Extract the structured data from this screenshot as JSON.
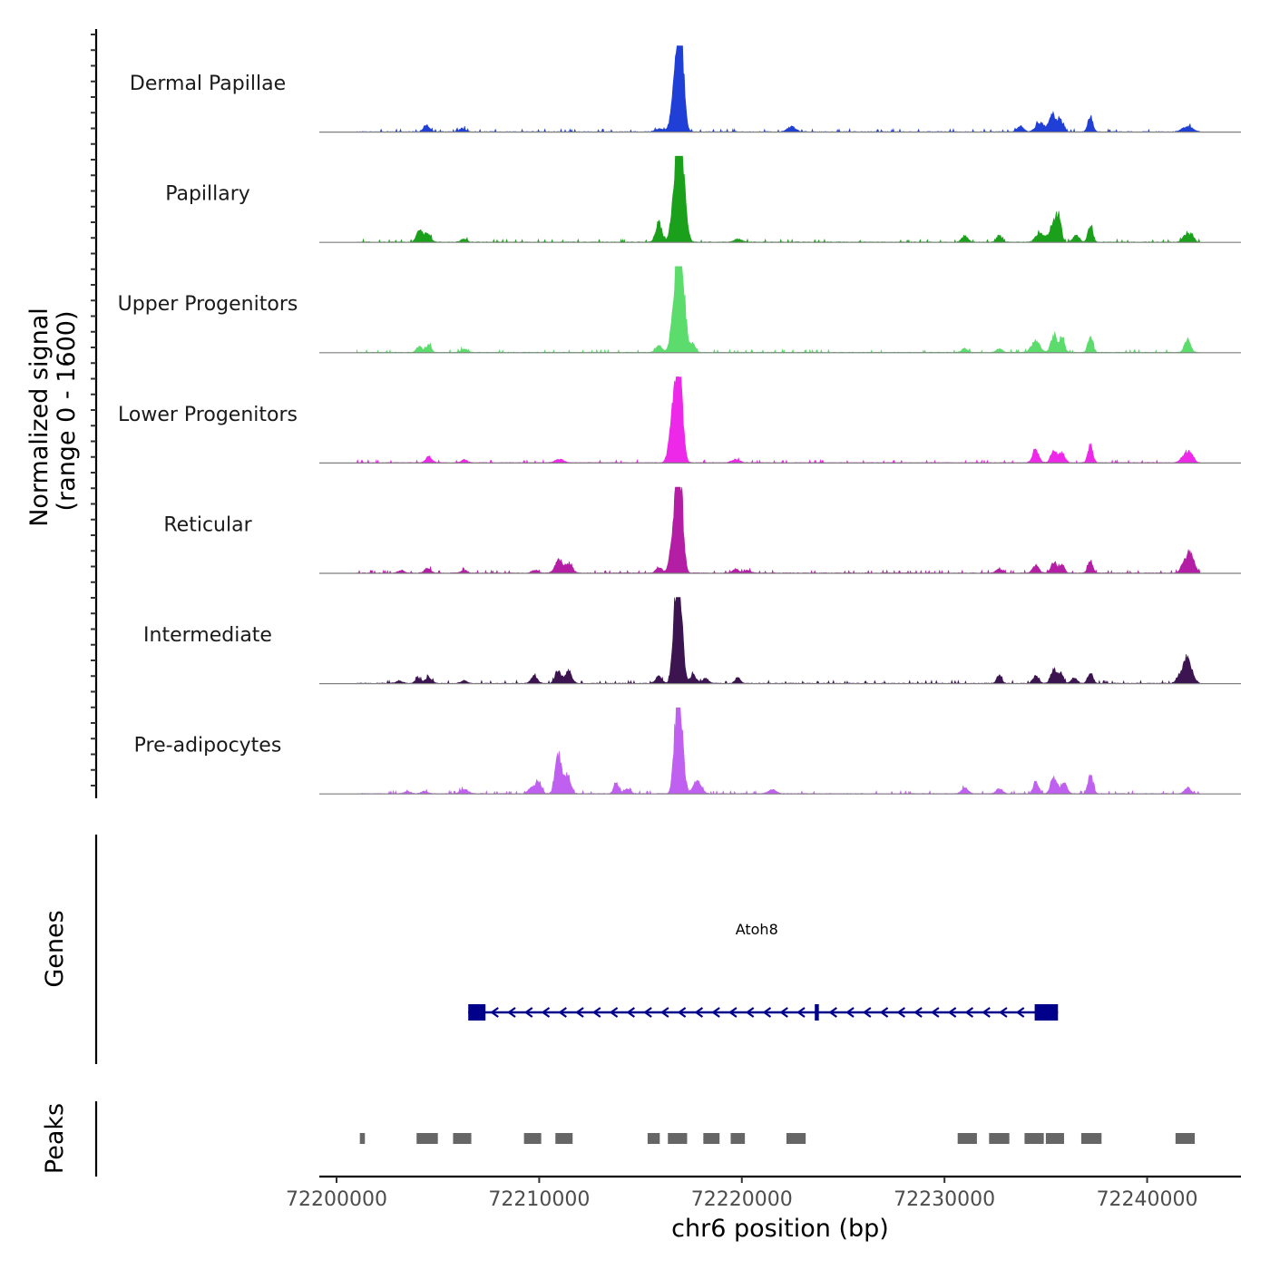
{
  "chart_data": {
    "type": "area",
    "title": "",
    "ylabel": "Normalized signal (range 0 - 1600)",
    "ylabel_lines": [
      "Normalized signal",
      "(range 0 - 1600)"
    ],
    "ylim": [
      0,
      1600
    ],
    "xlabel": "chr6 position (bp)",
    "xlim": [
      72199150,
      72244630
    ],
    "xticks": [
      72200000,
      72210000,
      72220000,
      72230000,
      72240000
    ],
    "xtick_labels": [
      "72200000",
      "72210000",
      "72220000",
      "72230000",
      "72240000"
    ],
    "tracks": [
      {
        "name": "Dermal Papillae",
        "color": "#1f3fd6",
        "peaks": [
          [
            72204450,
            120,
            150
          ],
          [
            72206200,
            70,
            150
          ],
          [
            72215950,
            60,
            200
          ],
          [
            72216800,
            1450,
            200
          ],
          [
            72217000,
            1200,
            150
          ],
          [
            72222450,
            100,
            200
          ],
          [
            72233750,
            120,
            150
          ],
          [
            72234700,
            180,
            200
          ],
          [
            72235300,
            350,
            150
          ],
          [
            72235700,
            250,
            150
          ],
          [
            72237200,
            300,
            120
          ],
          [
            72242000,
            100,
            250
          ]
        ]
      },
      {
        "name": "Papillary",
        "color": "#1aa01a",
        "peaks": [
          [
            72204100,
            240,
            150
          ],
          [
            72204500,
            160,
            150
          ],
          [
            72206300,
            60,
            150
          ],
          [
            72215900,
            380,
            150
          ],
          [
            72216800,
            1500,
            200
          ],
          [
            72217050,
            1200,
            180
          ],
          [
            72219800,
            60,
            200
          ],
          [
            72231000,
            120,
            150
          ],
          [
            72232700,
            140,
            120
          ],
          [
            72234700,
            180,
            200
          ],
          [
            72235400,
            380,
            200
          ],
          [
            72235650,
            350,
            120
          ],
          [
            72236500,
            140,
            150
          ],
          [
            72237200,
            320,
            120
          ],
          [
            72241900,
            150,
            150
          ],
          [
            72242200,
            140,
            120
          ]
        ]
      },
      {
        "name": "Upper Progenitors",
        "color": "#5cdc6c",
        "peaks": [
          [
            72204100,
            120,
            150
          ],
          [
            72204550,
            150,
            120
          ],
          [
            72206300,
            70,
            150
          ],
          [
            72215900,
            150,
            150
          ],
          [
            72216800,
            1600,
            200
          ],
          [
            72217050,
            1100,
            180
          ],
          [
            72217600,
            160,
            120
          ],
          [
            72231000,
            80,
            150
          ],
          [
            72232700,
            70,
            150
          ],
          [
            72234500,
            230,
            200
          ],
          [
            72235400,
            330,
            150
          ],
          [
            72235800,
            300,
            120
          ],
          [
            72237200,
            300,
            120
          ],
          [
            72242000,
            250,
            150
          ]
        ]
      },
      {
        "name": "Lower Progenitors",
        "color": "#ee28e8",
        "peaks": [
          [
            72204550,
            120,
            150
          ],
          [
            72206300,
            60,
            150
          ],
          [
            72211000,
            70,
            200
          ],
          [
            72216700,
            1400,
            200
          ],
          [
            72216950,
            1300,
            150
          ],
          [
            72219700,
            60,
            200
          ],
          [
            72234500,
            250,
            150
          ],
          [
            72235400,
            230,
            150
          ],
          [
            72235800,
            180,
            150
          ],
          [
            72237200,
            350,
            120
          ],
          [
            72241850,
            150,
            180
          ],
          [
            72242150,
            180,
            150
          ]
        ]
      },
      {
        "name": "Reticular",
        "color": "#b41ea5",
        "peaks": [
          [
            72203200,
            50,
            150
          ],
          [
            72204500,
            100,
            150
          ],
          [
            72206300,
            50,
            150
          ],
          [
            72209800,
            60,
            150
          ],
          [
            72211000,
            260,
            200
          ],
          [
            72211500,
            160,
            150
          ],
          [
            72215900,
            120,
            150
          ],
          [
            72216750,
            1200,
            200
          ],
          [
            72216950,
            1400,
            150
          ],
          [
            72219700,
            80,
            150
          ],
          [
            72220300,
            50,
            150
          ],
          [
            72232700,
            80,
            150
          ],
          [
            72234500,
            150,
            150
          ],
          [
            72235400,
            200,
            150
          ],
          [
            72235800,
            170,
            120
          ],
          [
            72237200,
            250,
            120
          ],
          [
            72241850,
            180,
            180
          ],
          [
            72242150,
            350,
            180
          ]
        ]
      },
      {
        "name": "Intermediate",
        "color": "#3c1450",
        "peaks": [
          [
            72203100,
            50,
            150
          ],
          [
            72204050,
            90,
            150
          ],
          [
            72204550,
            120,
            150
          ],
          [
            72206300,
            50,
            150
          ],
          [
            72209750,
            150,
            150
          ],
          [
            72210950,
            230,
            150
          ],
          [
            72211450,
            260,
            150
          ],
          [
            72215900,
            140,
            150
          ],
          [
            72216750,
            1350,
            150
          ],
          [
            72216950,
            1300,
            150
          ],
          [
            72217600,
            160,
            150
          ],
          [
            72218200,
            100,
            150
          ],
          [
            72219800,
            120,
            120
          ],
          [
            72232700,
            160,
            120
          ],
          [
            72234500,
            140,
            150
          ],
          [
            72235400,
            280,
            150
          ],
          [
            72235750,
            180,
            120
          ],
          [
            72236400,
            100,
            150
          ],
          [
            72237200,
            220,
            120
          ],
          [
            72241600,
            150,
            150
          ],
          [
            72241950,
            500,
            150
          ],
          [
            72242250,
            120,
            150
          ]
        ]
      },
      {
        "name": "Pre-adipocytes",
        "color": "#c060f0",
        "peaks": [
          [
            72203500,
            40,
            150
          ],
          [
            72204350,
            50,
            150
          ],
          [
            72206300,
            80,
            200
          ],
          [
            72209600,
            100,
            150
          ],
          [
            72209950,
            250,
            150
          ],
          [
            72210950,
            800,
            150
          ],
          [
            72211400,
            380,
            150
          ],
          [
            72213800,
            220,
            120
          ],
          [
            72214350,
            100,
            150
          ],
          [
            72216800,
            1500,
            150
          ],
          [
            72217000,
            1000,
            150
          ],
          [
            72217800,
            250,
            200
          ],
          [
            72221500,
            80,
            200
          ],
          [
            72231000,
            120,
            150
          ],
          [
            72232700,
            100,
            150
          ],
          [
            72234500,
            230,
            120
          ],
          [
            72235400,
            320,
            150
          ],
          [
            72235900,
            200,
            150
          ],
          [
            72237200,
            370,
            120
          ],
          [
            72242000,
            120,
            150
          ]
        ]
      }
    ],
    "gene": {
      "name": "Atoh8",
      "color": "#00008b",
      "start": 72206500,
      "end": 72235600,
      "strand": "-",
      "exons": [
        [
          72206500,
          72207350
        ],
        [
          72223600,
          72223800
        ],
        [
          72234450,
          72235600
        ]
      ],
      "arrow_positions": [
        72207800,
        72208640,
        72209480,
        72210320,
        72211160,
        72212000,
        72212840,
        72213680,
        72214520,
        72215360,
        72216200,
        72217040,
        72217880,
        72218720,
        72219560,
        72220400,
        72221240,
        72222080,
        72222920,
        72224500,
        72225340,
        72226180,
        72227020,
        72227860,
        72228700,
        72229540,
        72230380,
        72231220,
        72232060,
        72232900,
        72233740
      ]
    },
    "peaks_track": {
      "color": "#666666",
      "regions": [
        [
          72201150,
          72201400
        ],
        [
          72203950,
          72205000
        ],
        [
          72205750,
          72206650
        ],
        [
          72209250,
          72210100
        ],
        [
          72210800,
          72211650
        ],
        [
          72215350,
          72215950
        ],
        [
          72216350,
          72217300
        ],
        [
          72218100,
          72218900
        ],
        [
          72219450,
          72220150
        ],
        [
          72222200,
          72223150
        ],
        [
          72230650,
          72231600
        ],
        [
          72232200,
          72233200
        ],
        [
          72233950,
          72234900
        ],
        [
          72235000,
          72235900
        ],
        [
          72236750,
          72237750
        ],
        [
          72241400,
          72242350
        ]
      ]
    },
    "panel_labels": {
      "genes": "Genes",
      "peaks": "Peaks"
    }
  }
}
